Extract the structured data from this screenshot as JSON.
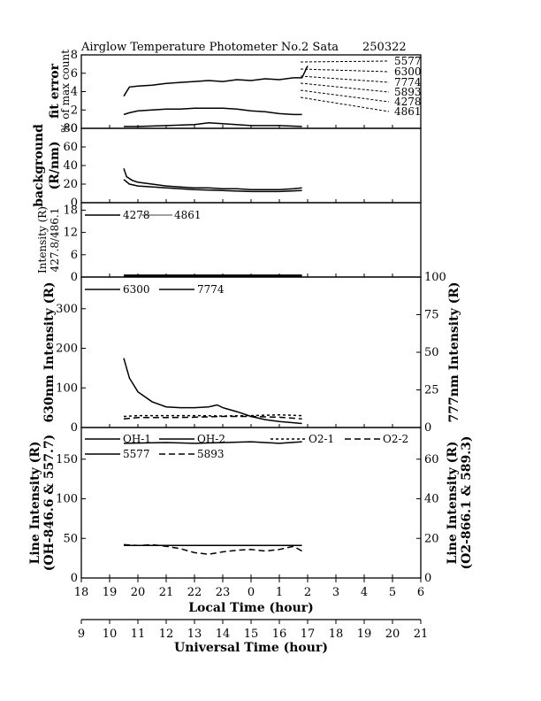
{
  "header": {
    "title": "Airglow Temperature Photometer No.2  Sata",
    "code": "250322"
  },
  "chart_data": [
    {
      "type": "line",
      "panel": "fit-error",
      "ylabel_lines": [
        "fit error",
        "% of max count"
      ],
      "ylim": [
        0,
        8
      ],
      "yticks": [
        "0",
        "2",
        "4",
        "6",
        "8"
      ],
      "legend_labels": [
        "5577",
        "6300",
        "7774",
        "5893",
        "4278",
        "4861"
      ],
      "series": [
        {
          "name": "6300",
          "style": "solid",
          "x": [
            10.5,
            10.7,
            11.0,
            11.5,
            12.0,
            12.5,
            13.0,
            13.5,
            14.0,
            14.5,
            15.0,
            15.5,
            16.0,
            16.5,
            16.8,
            17.0
          ],
          "y": [
            3.5,
            4.5,
            4.6,
            4.7,
            4.9,
            5.0,
            5.1,
            5.2,
            5.1,
            5.3,
            5.2,
            5.4,
            5.3,
            5.5,
            5.5,
            6.8
          ]
        },
        {
          "name": "5577",
          "style": "solid",
          "x": [
            10.5,
            10.7,
            11.0,
            11.5,
            12.0,
            12.5,
            13.0,
            13.5,
            14.0,
            14.5,
            15.0,
            15.5,
            16.0,
            16.5,
            16.8
          ],
          "y": [
            1.5,
            1.7,
            1.9,
            2.0,
            2.1,
            2.1,
            2.2,
            2.2,
            2.2,
            2.1,
            1.9,
            1.8,
            1.6,
            1.5,
            1.5
          ]
        },
        {
          "name": "7774",
          "style": "solid",
          "x": [
            10.5,
            11.0,
            12.0,
            13.0,
            13.5,
            14.0,
            15.0,
            16.0,
            16.8
          ],
          "y": [
            0.2,
            0.2,
            0.3,
            0.4,
            0.6,
            0.5,
            0.3,
            0.3,
            0.2
          ]
        }
      ]
    },
    {
      "type": "line",
      "panel": "background",
      "ylabel_lines": [
        "background",
        "(R/nm)"
      ],
      "ylim": [
        0,
        80
      ],
      "yticks": [
        "0",
        "20",
        "40",
        "60",
        "80"
      ],
      "series": [
        {
          "name": "background-a",
          "style": "solid",
          "x": [
            10.5,
            10.6,
            10.8,
            11.0,
            11.5,
            12.0,
            12.5,
            13.0,
            13.5,
            14.0,
            14.5,
            15.0,
            15.5,
            16.0,
            16.5,
            16.8
          ],
          "y": [
            37,
            28,
            24,
            22,
            20,
            18,
            17,
            16,
            16,
            15,
            15,
            14,
            14,
            14,
            15,
            16
          ]
        },
        {
          "name": "background-b",
          "style": "solid",
          "x": [
            10.5,
            10.7,
            11.0,
            12.0,
            13.0,
            14.0,
            15.0,
            16.0,
            16.8
          ],
          "y": [
            25,
            20,
            18,
            16,
            14,
            13,
            12,
            12,
            13
          ]
        }
      ]
    },
    {
      "type": "line",
      "panel": "intensity-427-486",
      "ylabel_lines": [
        "Intensity (R)",
        "427.8/486.1"
      ],
      "ylim": [
        0,
        20
      ],
      "yticks": [
        "0",
        "6",
        "12",
        "18"
      ],
      "legend_labels": [
        "4278",
        "4861"
      ],
      "series": [
        {
          "name": "4278",
          "style": "solid",
          "x": [
            10.5,
            16.8
          ],
          "y": [
            0.3,
            0.3
          ]
        },
        {
          "name": "4861",
          "style": "solid",
          "x": [
            10.5,
            16.8
          ],
          "y": [
            0.5,
            0.5
          ]
        }
      ]
    },
    {
      "type": "line",
      "panel": "630-777",
      "ylabel": "630nm Intensity (R)",
      "y2label": "777nm Intensity (R)",
      "ylim": [
        0,
        380
      ],
      "yticks": [
        "0",
        "100",
        "200",
        "300"
      ],
      "y2lim": [
        0,
        100
      ],
      "y2ticks": [
        "0",
        "25",
        "50",
        "75",
        "100"
      ],
      "legend_labels": [
        "6300",
        "7774"
      ],
      "series": [
        {
          "name": "6300",
          "style": "solid",
          "x": [
            10.5,
            10.7,
            11.0,
            11.5,
            12.0,
            12.5,
            13.0,
            13.5,
            13.8,
            14.0,
            14.5,
            15.0,
            15.5,
            16.0,
            16.5,
            16.8
          ],
          "y": [
            175,
            125,
            90,
            65,
            52,
            50,
            50,
            52,
            57,
            50,
            40,
            28,
            20,
            15,
            12,
            10
          ]
        },
        {
          "name": "7774",
          "style": "dashed",
          "x": [
            10.5,
            11.0,
            12.0,
            13.0,
            14.0,
            15.0,
            16.0,
            16.8
          ],
          "y": [
            22,
            25,
            25,
            26,
            28,
            28,
            26,
            22
          ]
        },
        {
          "name": "7774-b",
          "style": "dotted",
          "x": [
            10.5,
            11.0,
            12.0,
            13.0,
            14.0,
            15.0,
            16.0,
            16.8
          ],
          "y": [
            28,
            30,
            30,
            30,
            29,
            30,
            32,
            30
          ]
        }
      ]
    },
    {
      "type": "line",
      "panel": "line-intensity",
      "ylabel_lines": [
        "Line Intensity (R)",
        "(OH-846.6 & 557.7)"
      ],
      "y2label_lines": [
        "Line Intensity (R)",
        "(O2-866.1 & 589.3)"
      ],
      "ylim": [
        0,
        190
      ],
      "yticks": [
        "0",
        "50",
        "100",
        "150"
      ],
      "y2lim": [
        0,
        76
      ],
      "y2ticks": [
        "0",
        "20",
        "40",
        "60"
      ],
      "legend_labels": [
        "OH-1",
        "OH-2",
        "O2-1",
        "O2-2",
        "5577",
        "5893"
      ],
      "series": [
        {
          "name": "OH-2",
          "style": "solid",
          "x": [
            10.5,
            12.0,
            13.0,
            14.0,
            15.0,
            16.0,
            16.8
          ],
          "y": [
            170,
            171,
            170,
            171,
            172,
            170,
            172
          ]
        },
        {
          "name": "5577",
          "style": "solid",
          "x": [
            10.5,
            11.0,
            12.0,
            13.0,
            14.0,
            15.0,
            16.0,
            16.8
          ],
          "y": [
            41,
            41,
            41,
            41,
            41,
            41,
            41,
            41
          ]
        },
        {
          "name": "5893",
          "style": "dashed",
          "x": [
            10.5,
            11.0,
            11.5,
            12.0,
            12.5,
            13.0,
            13.5,
            14.0,
            14.5,
            15.0,
            15.5,
            16.0,
            16.5,
            16.8
          ],
          "y": [
            42,
            41,
            42,
            40,
            37,
            32,
            30,
            33,
            35,
            36,
            34,
            36,
            40,
            34
          ]
        }
      ]
    }
  ],
  "axes": {
    "local": {
      "label": "Local Time (hour)",
      "ticks": [
        "18",
        "19",
        "20",
        "21",
        "22",
        "23",
        "0",
        "1",
        "2",
        "3",
        "4",
        "5",
        "6"
      ]
    },
    "ut": {
      "label": "Universal Time (hour)",
      "ticks": [
        "9",
        "10",
        "11",
        "12",
        "13",
        "14",
        "15",
        "16",
        "17",
        "18",
        "19",
        "20",
        "21"
      ]
    },
    "ut_range": [
      9,
      21
    ]
  },
  "colors": {
    "ink": "#000000",
    "background": "#ffffff"
  }
}
